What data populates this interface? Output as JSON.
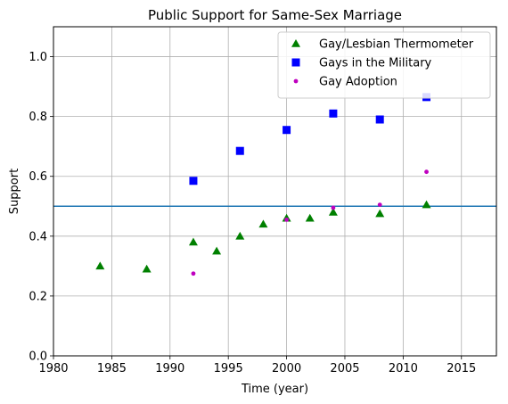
{
  "chart_data": {
    "type": "scatter",
    "title": "Public Support for Same-Sex Marriage",
    "xlabel": "Time (year)",
    "ylabel": "Support",
    "xlim": [
      1980,
      2018
    ],
    "ylim": [
      0,
      1.1
    ],
    "xticks": [
      1980,
      1985,
      1990,
      1995,
      2000,
      2005,
      2010,
      2015
    ],
    "yticks": [
      0.0,
      0.2,
      0.4,
      0.6,
      0.8,
      1.0
    ],
    "xtick_labels": [
      "1980",
      "1985",
      "1990",
      "1995",
      "2000",
      "2005",
      "2010",
      "2015"
    ],
    "ytick_labels": [
      "0.0",
      "0.2",
      "0.4",
      "0.6",
      "0.8",
      "1.0"
    ],
    "grid": true,
    "legend_position": "top-right",
    "reference_line": {
      "y": 0.5,
      "color": "#1f77b4"
    },
    "series": [
      {
        "name": "Gay/Lesbian Thermometer",
        "marker": "triangle",
        "color": "#008000",
        "points": [
          [
            1984,
            0.3
          ],
          [
            1988,
            0.29
          ],
          [
            1992,
            0.38
          ],
          [
            1994,
            0.35
          ],
          [
            1996,
            0.4
          ],
          [
            1998,
            0.44
          ],
          [
            2000,
            0.46
          ],
          [
            2002,
            0.46
          ],
          [
            2004,
            0.48
          ],
          [
            2008,
            0.475
          ],
          [
            2012,
            0.505
          ]
        ]
      },
      {
        "name": "Gays in the Military",
        "marker": "square",
        "color": "#0000ff",
        "points": [
          [
            1992,
            0.585
          ],
          [
            1996,
            0.685
          ],
          [
            2000,
            0.755
          ],
          [
            2004,
            0.81
          ],
          [
            2008,
            0.79
          ],
          [
            2012,
            0.865
          ]
        ]
      },
      {
        "name": "Gay Adoption",
        "marker": "circle",
        "color": "#bf00bf",
        "points": [
          [
            1992,
            0.275
          ],
          [
            2000,
            0.455
          ],
          [
            2004,
            0.495
          ],
          [
            2008,
            0.505
          ],
          [
            2012,
            0.615
          ]
        ]
      }
    ]
  }
}
